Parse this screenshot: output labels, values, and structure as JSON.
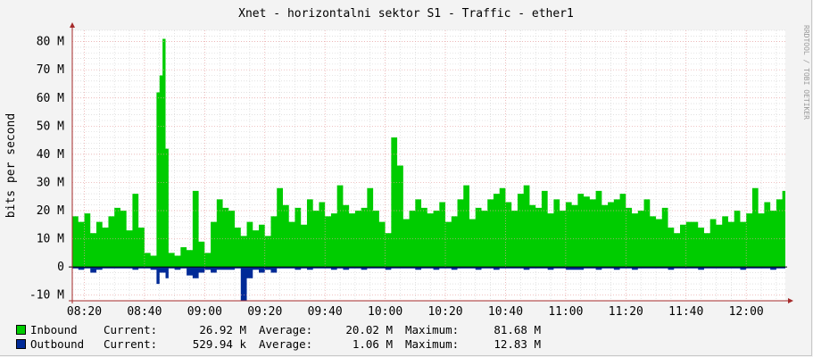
{
  "chart_data": {
    "type": "area",
    "title": "Xnet - horizontalni sektor S1 - Traffic - ether1",
    "ylabel": "bits per second",
    "watermark": "RRDTOOL / TOBI OETIKER",
    "ylim": [
      -12,
      84
    ],
    "y_ticks": [
      {
        "value": -10,
        "label": "-10 M"
      },
      {
        "value": 0,
        "label": "0"
      },
      {
        "value": 10,
        "label": "10 M"
      },
      {
        "value": 20,
        "label": "20 M"
      },
      {
        "value": 30,
        "label": "30 M"
      },
      {
        "value": 40,
        "label": "40 M"
      },
      {
        "value": 50,
        "label": "50 M"
      },
      {
        "value": 60,
        "label": "60 M"
      },
      {
        "value": 70,
        "label": "70 M"
      },
      {
        "value": 80,
        "label": "80 M"
      }
    ],
    "x_ticks": [
      "08:20",
      "08:40",
      "09:00",
      "09:20",
      "09:40",
      "10:00",
      "10:20",
      "10:40",
      "11:00",
      "11:20",
      "11:40",
      "12:00"
    ],
    "x_start": "08:16",
    "x_end": "12:13",
    "grid": true,
    "colors": {
      "inbound": "#00cc00",
      "outbound": "#002a97",
      "grid_major": "#e6a0a0",
      "grid_minor": "#cfcfcf",
      "axis": "#a52a2a"
    },
    "series": [
      {
        "name": "Inbound",
        "x": [
          "08:16",
          "08:18",
          "08:20",
          "08:22",
          "08:24",
          "08:26",
          "08:28",
          "08:30",
          "08:32",
          "08:34",
          "08:36",
          "08:38",
          "08:40",
          "08:42",
          "08:44",
          "08:45",
          "08:46",
          "08:47",
          "08:48",
          "08:50",
          "08:52",
          "08:54",
          "08:56",
          "08:58",
          "09:00",
          "09:02",
          "09:04",
          "09:06",
          "09:08",
          "09:10",
          "09:12",
          "09:14",
          "09:16",
          "09:18",
          "09:20",
          "09:22",
          "09:24",
          "09:26",
          "09:28",
          "09:30",
          "09:32",
          "09:34",
          "09:36",
          "09:38",
          "09:40",
          "09:42",
          "09:44",
          "09:46",
          "09:48",
          "09:50",
          "09:52",
          "09:54",
          "09:56",
          "09:58",
          "10:00",
          "10:02",
          "10:04",
          "10:06",
          "10:08",
          "10:10",
          "10:12",
          "10:14",
          "10:16",
          "10:18",
          "10:20",
          "10:22",
          "10:24",
          "10:26",
          "10:28",
          "10:30",
          "10:32",
          "10:34",
          "10:36",
          "10:38",
          "10:40",
          "10:42",
          "10:44",
          "10:46",
          "10:48",
          "10:50",
          "10:52",
          "10:54",
          "10:56",
          "10:58",
          "11:00",
          "11:02",
          "11:04",
          "11:06",
          "11:08",
          "11:10",
          "11:12",
          "11:14",
          "11:16",
          "11:18",
          "11:20",
          "11:22",
          "11:24",
          "11:26",
          "11:28",
          "11:30",
          "11:32",
          "11:34",
          "11:36",
          "11:38",
          "11:40",
          "11:42",
          "11:44",
          "11:46",
          "11:48",
          "11:50",
          "11:52",
          "11:54",
          "11:56",
          "11:58",
          "12:00",
          "12:02",
          "12:04",
          "12:06",
          "12:08",
          "12:10",
          "12:12",
          "12:13"
        ],
        "values": [
          18,
          16,
          19,
          12,
          16,
          14,
          18,
          21,
          20,
          13,
          26,
          14,
          5,
          4,
          62,
          68,
          81,
          42,
          5,
          4,
          7,
          6,
          27,
          9,
          5,
          16,
          24,
          21,
          20,
          14,
          11,
          16,
          13,
          15,
          11,
          18,
          28,
          22,
          16,
          21,
          15,
          24,
          20,
          23,
          18,
          19,
          29,
          22,
          19,
          20,
          21,
          28,
          20,
          16,
          12,
          46,
          36,
          17,
          20,
          24,
          21,
          19,
          20,
          23,
          16,
          18,
          24,
          29,
          17,
          21,
          20,
          24,
          26,
          28,
          23,
          20,
          26,
          29,
          22,
          21,
          27,
          19,
          24,
          20,
          23,
          22,
          26,
          25,
          24,
          27,
          22,
          23,
          24,
          26,
          21,
          19,
          20,
          24,
          18,
          17,
          21,
          14,
          12,
          15,
          16,
          16,
          14,
          12,
          17,
          15,
          18,
          16,
          20,
          16,
          19,
          28,
          19,
          23,
          20,
          24,
          27,
          27
        ],
        "stats": {
          "current": "26.92 M",
          "average": "20.02 M",
          "maximum": "81.68 M"
        }
      },
      {
        "name": "Outbound",
        "x": [
          "08:16",
          "08:18",
          "08:20",
          "08:22",
          "08:24",
          "08:26",
          "08:28",
          "08:30",
          "08:32",
          "08:34",
          "08:36",
          "08:38",
          "08:40",
          "08:42",
          "08:44",
          "08:45",
          "08:46",
          "08:47",
          "08:48",
          "08:50",
          "08:52",
          "08:54",
          "08:56",
          "08:58",
          "09:00",
          "09:02",
          "09:04",
          "09:06",
          "09:08",
          "09:10",
          "09:12",
          "09:14",
          "09:16",
          "09:18",
          "09:20",
          "09:22",
          "09:24",
          "09:26",
          "09:28",
          "09:30",
          "09:32",
          "09:34",
          "09:36",
          "09:38",
          "09:40",
          "09:42",
          "09:44",
          "09:46",
          "09:48",
          "09:50",
          "09:52",
          "09:54",
          "09:56",
          "09:58",
          "10:00",
          "10:02",
          "10:04",
          "10:06",
          "10:08",
          "10:10",
          "10:12",
          "10:14",
          "10:16",
          "10:18",
          "10:20",
          "10:22",
          "10:24",
          "10:26",
          "10:28",
          "10:30",
          "10:32",
          "10:34",
          "10:36",
          "10:38",
          "10:40",
          "10:42",
          "10:44",
          "10:46",
          "10:48",
          "10:50",
          "10:52",
          "10:54",
          "10:56",
          "10:58",
          "11:00",
          "11:02",
          "11:04",
          "11:06",
          "11:08",
          "11:10",
          "11:12",
          "11:14",
          "11:16",
          "11:18",
          "11:20",
          "11:22",
          "11:24",
          "11:26",
          "11:28",
          "11:30",
          "11:32",
          "11:34",
          "11:36",
          "11:38",
          "11:40",
          "11:42",
          "11:44",
          "11:46",
          "11:48",
          "11:50",
          "11:52",
          "11:54",
          "11:56",
          "11:58",
          "12:00",
          "12:02",
          "12:04",
          "12:06",
          "12:08",
          "12:10",
          "12:12",
          "12:13"
        ],
        "values": [
          -0.5,
          -1,
          -0.5,
          -2,
          -1,
          -0.5,
          -0.5,
          -0.5,
          -0.5,
          -0.5,
          -1,
          -0.5,
          -0.5,
          -1,
          -6,
          -2,
          -2,
          -4,
          -0.5,
          -1,
          -0.5,
          -3,
          -4,
          -2,
          -1,
          -2,
          -1,
          -1,
          -1,
          -0.5,
          -12,
          -4,
          -1,
          -2,
          -1,
          -2,
          -0.5,
          -0.5,
          -0.5,
          -1,
          -0.5,
          -1,
          -0.5,
          -0.5,
          -0.5,
          -1,
          -0.5,
          -1,
          -0.5,
          -0.5,
          -1,
          -0.5,
          -0.5,
          -0.5,
          -1,
          -0.5,
          -0.5,
          -0.5,
          -0.5,
          -1,
          -0.5,
          -0.5,
          -1,
          -0.5,
          -0.5,
          -1,
          -0.5,
          -0.5,
          -0.5,
          -1,
          -0.5,
          -0.5,
          -1,
          -0.5,
          -0.5,
          -0.5,
          -0.5,
          -1,
          -0.5,
          -0.5,
          -0.5,
          -1,
          -0.5,
          -0.5,
          -1,
          -1,
          -1,
          -0.5,
          -0.5,
          -1,
          -0.5,
          -0.5,
          -1,
          -0.5,
          -0.5,
          -1,
          -0.5,
          -0.5,
          -0.5,
          -0.5,
          -0.5,
          -1,
          -0.5,
          -0.5,
          -0.5,
          -0.5,
          -1,
          -0.5,
          -0.5,
          -0.5,
          -0.5,
          -0.5,
          -0.5,
          -1,
          -0.5,
          -0.5,
          -0.5,
          -0.5,
          -1,
          -0.5,
          -0.5,
          -0.5
        ],
        "stats": {
          "current": "529.94 k",
          "average": "1.06 M",
          "maximum": "12.83 M"
        }
      }
    ]
  },
  "legend": {
    "current_label": "Current:",
    "average_label": "Average:",
    "maximum_label": "Maximum:"
  }
}
